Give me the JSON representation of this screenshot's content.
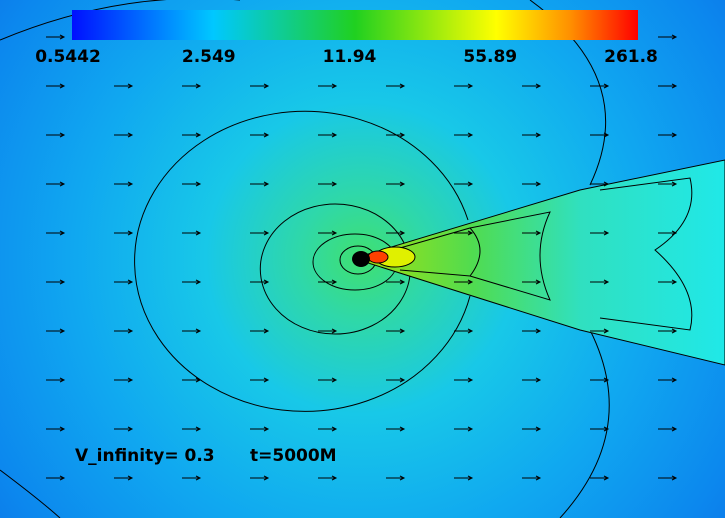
{
  "colorbar": {
    "labels": [
      "0.5442",
      "2.549",
      "11.94",
      "55.89",
      "261.8"
    ]
  },
  "annotation": {
    "velocity": "V_infinity= 0.3",
    "time": "t=5000M"
  }
}
